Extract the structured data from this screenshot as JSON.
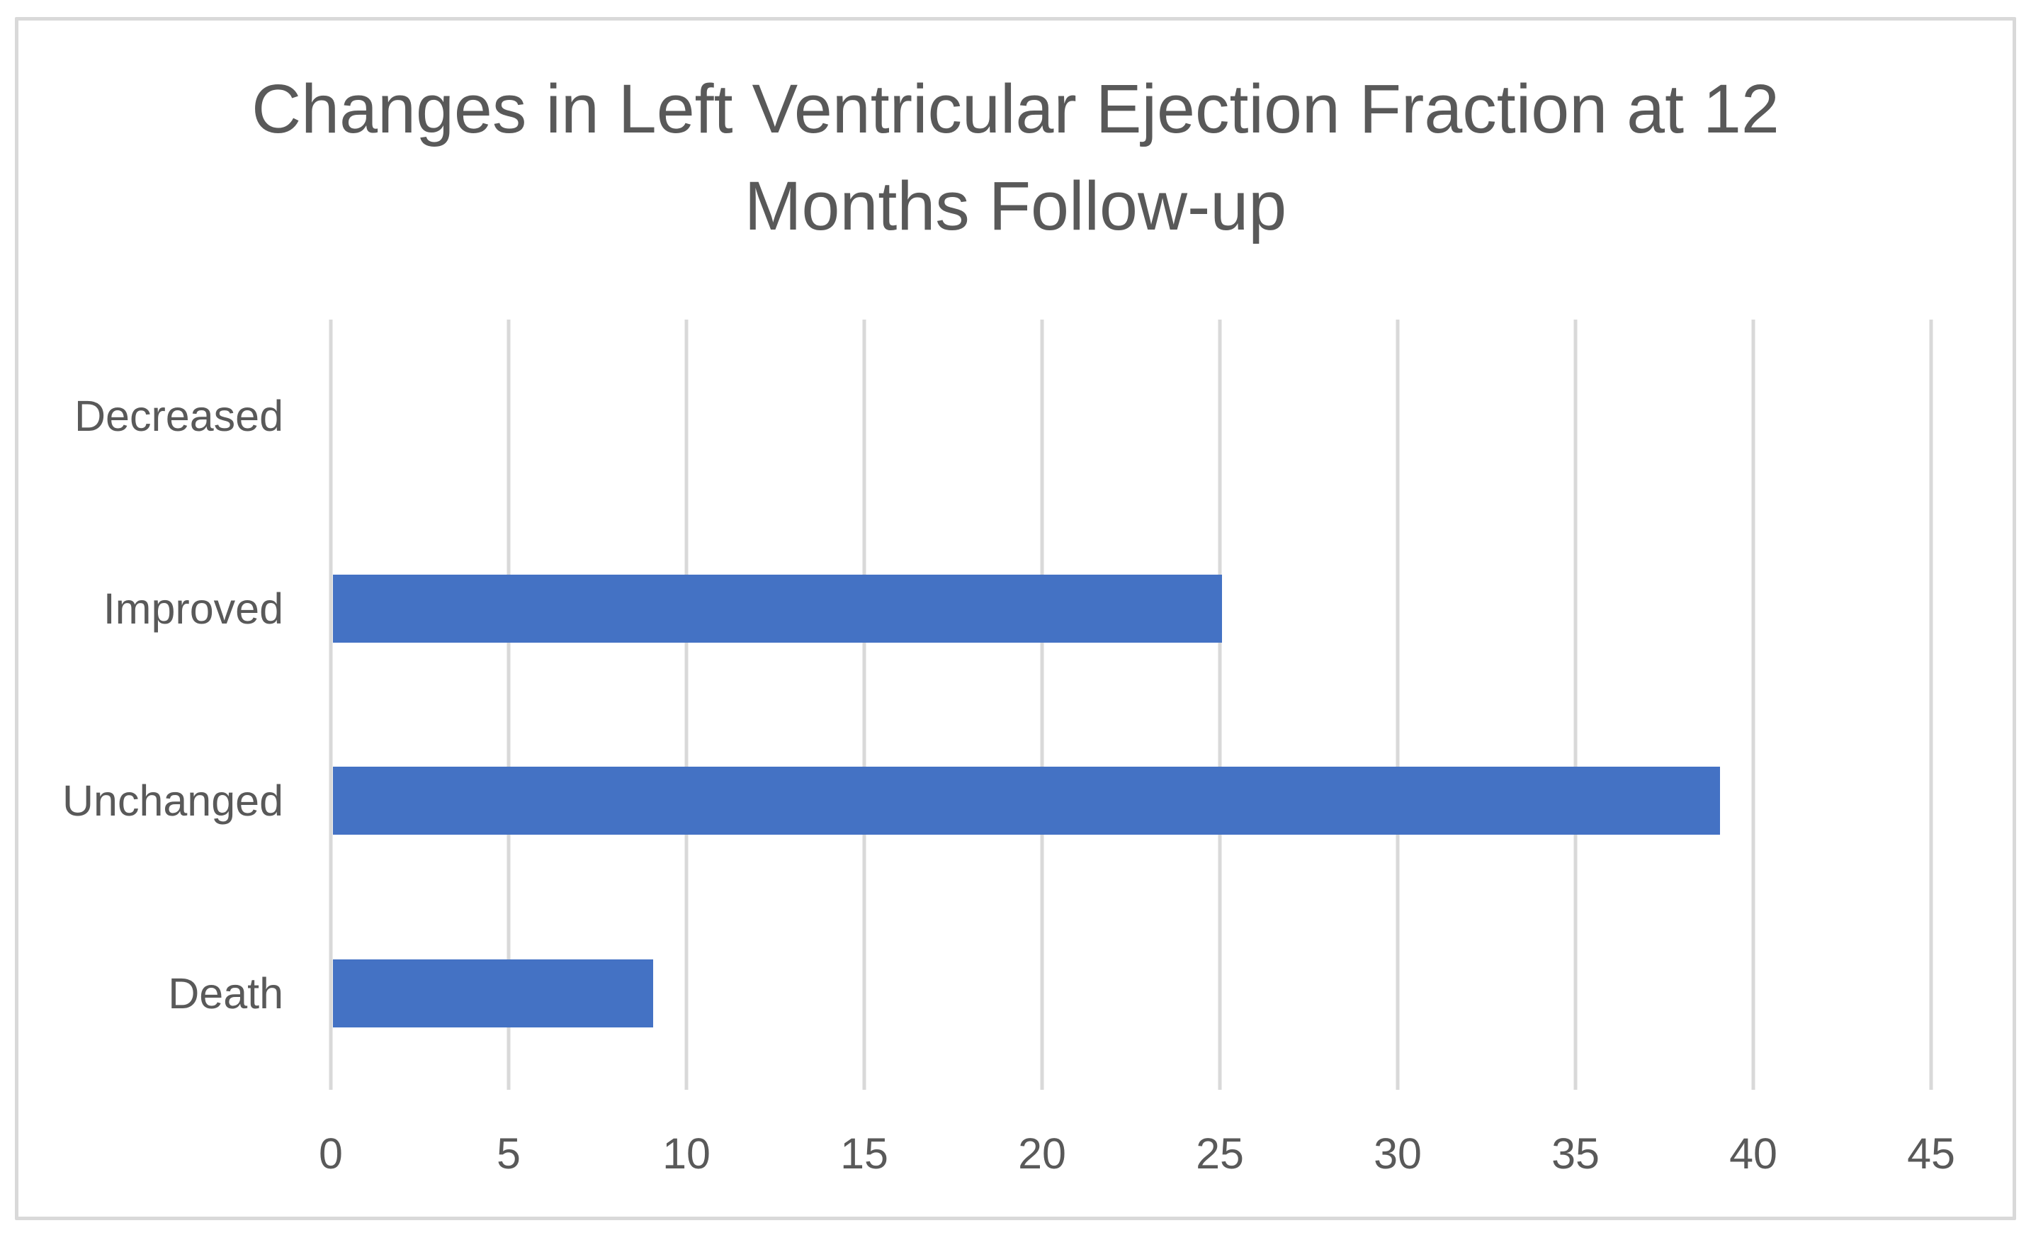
{
  "chart": {
    "title_line1": "Changes in Left Ventricular Ejection Fraction at 12",
    "title_line2": "Months Follow-up"
  },
  "chart_data": {
    "type": "bar",
    "orientation": "horizontal",
    "title": "Changes in Left Ventricular Ejection Fraction at 12 Months Follow-up",
    "categories": [
      "Decreased",
      "Improved",
      "Unchanged",
      "Death"
    ],
    "values": [
      0,
      25,
      39,
      9
    ],
    "xlabel": "",
    "ylabel": "",
    "xlim": [
      0,
      45
    ],
    "xticks": [
      0,
      5,
      10,
      15,
      20,
      25,
      30,
      35,
      40,
      45
    ],
    "grid": true,
    "legend": false,
    "colors": {
      "bar": "#4472C4",
      "gridline": "#D9D9D9",
      "axis_text": "#595959",
      "title_text": "#595959",
      "frame_border": "#D9D9D9",
      "background": "#FFFFFF"
    }
  }
}
